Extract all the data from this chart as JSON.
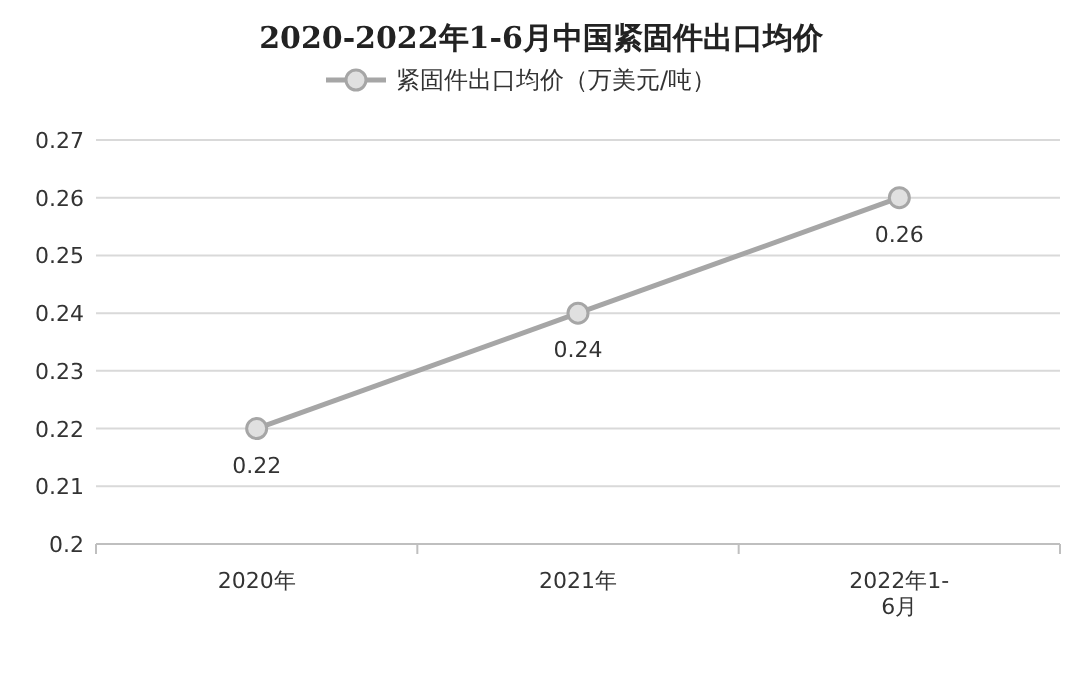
{
  "chart_data": {
    "type": "line",
    "title": "2020-2022年1-6月中国紧固件出口均价",
    "categories": [
      "2020年",
      "2021年",
      "2022年1-6月"
    ],
    "series": [
      {
        "name": "紧固件出口均价（万美元/吨）",
        "color": "#a6a6a6",
        "values": [
          0.22,
          0.24,
          0.26
        ]
      }
    ],
    "ylim": [
      0.2,
      0.27
    ],
    "yticks": [
      0.2,
      0.21,
      0.22,
      0.23,
      0.24,
      0.25,
      0.26,
      0.27
    ],
    "grid": "y",
    "legend": "top",
    "marker": "circle",
    "data_labels": true
  }
}
